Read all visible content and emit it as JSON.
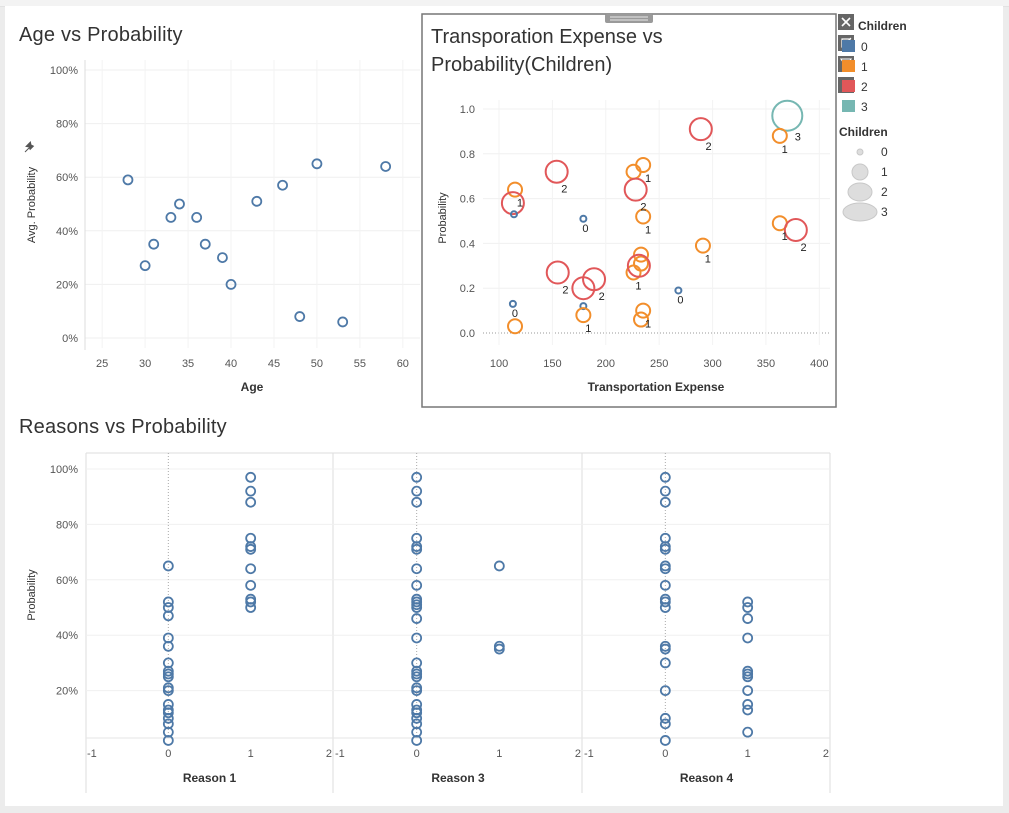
{
  "age_chart": {
    "title": "Age vs Probability",
    "xlabel": "Age",
    "ylabel": "Avg. Probability",
    "x_ticks": [
      "25",
      "30",
      "35",
      "40",
      "45",
      "50",
      "55",
      "60"
    ],
    "y_ticks": [
      "0%",
      "20%",
      "40%",
      "60%",
      "80%",
      "100%"
    ]
  },
  "transport_chart": {
    "title": "Transporation Expense vs Probability(Children)",
    "xlabel": "Transportation Expense",
    "ylabel": "Probability",
    "x_ticks": [
      "100",
      "150",
      "200",
      "250",
      "300",
      "350",
      "400"
    ],
    "y_ticks": [
      "0.0",
      "0.2",
      "0.4",
      "0.6",
      "0.8",
      "1.0"
    ]
  },
  "reasons_chart": {
    "title": "Reasons vs Probability",
    "ylabel": "Probability",
    "y_ticks": [
      "20%",
      "40%",
      "60%",
      "80%",
      "100%"
    ],
    "panel_ticks": [
      "-1",
      "0",
      "1",
      "2"
    ],
    "panels": [
      "Reason 1",
      "Reason 3",
      "Reason 4"
    ]
  },
  "legend": {
    "color_title": "Children",
    "color_items": [
      "0",
      "1",
      "2",
      "3"
    ],
    "size_title": "Children",
    "size_items": [
      "0",
      "1",
      "2",
      "3"
    ]
  },
  "colors": {
    "c0": "#4e79a7",
    "c1": "#f28e2b",
    "c2": "#e15759",
    "c3": "#76b7b2"
  },
  "chart_data": [
    {
      "type": "scatter",
      "title": "Age vs Probability",
      "xlabel": "Age",
      "ylabel": "Avg. Probability",
      "xlim": [
        23,
        62
      ],
      "ylim": [
        0,
        1.0
      ],
      "points": [
        {
          "x": 28,
          "y": 0.59
        },
        {
          "x": 30,
          "y": 0.27
        },
        {
          "x": 31,
          "y": 0.35
        },
        {
          "x": 33,
          "y": 0.45
        },
        {
          "x": 34,
          "y": 0.5
        },
        {
          "x": 36,
          "y": 0.45
        },
        {
          "x": 37,
          "y": 0.35
        },
        {
          "x": 39,
          "y": 0.3
        },
        {
          "x": 40,
          "y": 0.2
        },
        {
          "x": 43,
          "y": 0.51
        },
        {
          "x": 46,
          "y": 0.57
        },
        {
          "x": 48,
          "y": 0.08
        },
        {
          "x": 50,
          "y": 0.65
        },
        {
          "x": 53,
          "y": 0.06
        },
        {
          "x": 58,
          "y": 0.64
        }
      ]
    },
    {
      "type": "scatter",
      "title": "Transporation Expense vs Probability(Children)",
      "xlabel": "Transportation Expense",
      "ylabel": "Probability",
      "xlim": [
        85,
        410
      ],
      "ylim": [
        0,
        1.0
      ],
      "points": [
        {
          "x": 370,
          "y": 0.97,
          "children": 3
        },
        {
          "x": 289,
          "y": 0.91,
          "children": 2
        },
        {
          "x": 363,
          "y": 0.88,
          "children": 1
        },
        {
          "x": 235,
          "y": 0.75,
          "children": 1
        },
        {
          "x": 154,
          "y": 0.72,
          "children": 2
        },
        {
          "x": 226,
          "y": 0.72,
          "children": 1
        },
        {
          "x": 115,
          "y": 0.64,
          "children": 1
        },
        {
          "x": 228,
          "y": 0.64,
          "children": 2
        },
        {
          "x": 113,
          "y": 0.58,
          "children": 2
        },
        {
          "x": 114,
          "y": 0.53,
          "children": 0
        },
        {
          "x": 235,
          "y": 0.52,
          "children": 1
        },
        {
          "x": 179,
          "y": 0.51,
          "children": 0
        },
        {
          "x": 363,
          "y": 0.49,
          "children": 1
        },
        {
          "x": 378,
          "y": 0.46,
          "children": 2
        },
        {
          "x": 291,
          "y": 0.39,
          "children": 1
        },
        {
          "x": 233,
          "y": 0.35,
          "children": 1
        },
        {
          "x": 233,
          "y": 0.31,
          "children": 1
        },
        {
          "x": 155,
          "y": 0.27,
          "children": 2
        },
        {
          "x": 226,
          "y": 0.27,
          "children": 1
        },
        {
          "x": 231,
          "y": 0.3,
          "children": 2
        },
        {
          "x": 189,
          "y": 0.24,
          "children": 2
        },
        {
          "x": 179,
          "y": 0.2,
          "children": 2
        },
        {
          "x": 268,
          "y": 0.19,
          "children": 0
        },
        {
          "x": 113,
          "y": 0.13,
          "children": 0
        },
        {
          "x": 179,
          "y": 0.12,
          "children": 0
        },
        {
          "x": 235,
          "y": 0.1,
          "children": 1
        },
        {
          "x": 179,
          "y": 0.08,
          "children": 1
        },
        {
          "x": 233,
          "y": 0.06,
          "children": 1
        },
        {
          "x": 115,
          "y": 0.03,
          "children": 1
        }
      ],
      "labels": [
        {
          "x": 370,
          "y": 0.97,
          "text": "3"
        },
        {
          "x": 289,
          "y": 0.91,
          "text": "2"
        },
        {
          "x": 363,
          "y": 0.88,
          "text": "1"
        },
        {
          "x": 235,
          "y": 0.75,
          "text": "1"
        },
        {
          "x": 154,
          "y": 0.72,
          "text": "2"
        },
        {
          "x": 115,
          "y": 0.64,
          "text": "1"
        },
        {
          "x": 228,
          "y": 0.64,
          "text": "2"
        },
        {
          "x": 179,
          "y": 0.51,
          "text": "0"
        },
        {
          "x": 235,
          "y": 0.52,
          "text": "1"
        },
        {
          "x": 363,
          "y": 0.49,
          "text": "1"
        },
        {
          "x": 378,
          "y": 0.46,
          "text": "2"
        },
        {
          "x": 291,
          "y": 0.39,
          "text": "1"
        },
        {
          "x": 155,
          "y": 0.27,
          "text": "2"
        },
        {
          "x": 189,
          "y": 0.24,
          "text": "2"
        },
        {
          "x": 226,
          "y": 0.27,
          "text": "1"
        },
        {
          "x": 113,
          "y": 0.13,
          "text": "0"
        },
        {
          "x": 179,
          "y": 0.08,
          "text": "1"
        },
        {
          "x": 235,
          "y": 0.1,
          "text": "1"
        },
        {
          "x": 268,
          "y": 0.19,
          "text": "0"
        }
      ]
    },
    {
      "type": "scatter",
      "title": "Reasons vs Probability",
      "ylabel": "Probability",
      "ylim": [
        0,
        1.0
      ],
      "xlim": [
        -1,
        2
      ],
      "panels": [
        {
          "name": "Reason 1",
          "series": [
            {
              "x": 0,
              "values": [
                0.65,
                0.52,
                0.5,
                0.47,
                0.39,
                0.36,
                0.3,
                0.27,
                0.26,
                0.25,
                0.21,
                0.2,
                0.15,
                0.13,
                0.12,
                0.1,
                0.08,
                0.05,
                0.02
              ]
            },
            {
              "x": 1,
              "values": [
                0.97,
                0.92,
                0.88,
                0.75,
                0.72,
                0.71,
                0.64,
                0.58,
                0.53,
                0.52,
                0.5
              ]
            }
          ]
        },
        {
          "name": "Reason 3",
          "series": [
            {
              "x": 0,
              "values": [
                0.97,
                0.92,
                0.88,
                0.75,
                0.72,
                0.71,
                0.64,
                0.58,
                0.53,
                0.52,
                0.51,
                0.5,
                0.46,
                0.39,
                0.3,
                0.27,
                0.26,
                0.25,
                0.21,
                0.2,
                0.15,
                0.13,
                0.12,
                0.1,
                0.08,
                0.05,
                0.02
              ]
            },
            {
              "x": 1,
              "values": [
                0.65,
                0.36,
                0.35
              ]
            }
          ]
        },
        {
          "name": "Reason 4",
          "series": [
            {
              "x": 0,
              "values": [
                0.97,
                0.92,
                0.88,
                0.75,
                0.72,
                0.71,
                0.65,
                0.64,
                0.58,
                0.53,
                0.52,
                0.5,
                0.36,
                0.35,
                0.3,
                0.2,
                0.1,
                0.08,
                0.02
              ]
            },
            {
              "x": 1,
              "values": [
                0.52,
                0.5,
                0.46,
                0.39,
                0.27,
                0.26,
                0.25,
                0.2,
                0.15,
                0.13,
                0.05
              ]
            }
          ]
        }
      ]
    }
  ]
}
